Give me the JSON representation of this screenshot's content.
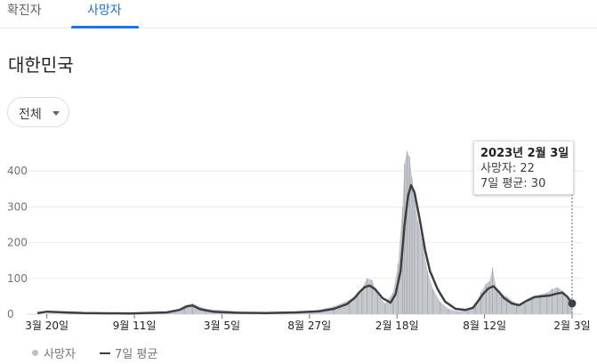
{
  "tabs": [
    {
      "label": "확진자",
      "active": false
    },
    {
      "label": "사망자",
      "active": true
    }
  ],
  "region": "대한민국",
  "filter": {
    "label": "전체",
    "icon": "caret-down-icon"
  },
  "tooltip": {
    "date": "2023년 2월 3일",
    "deaths_label": "사망자: 22",
    "avg_label": "7일 평균: 30"
  },
  "legend": {
    "deaths": "사망자",
    "avg": "7일 평균"
  },
  "colors": {
    "accent": "#1a73e8",
    "bars": "#bdc1c6",
    "line": "#3c4043"
  },
  "chart_data": {
    "type": "bar",
    "title": "",
    "xlabel": "",
    "ylabel": "",
    "ylim": [
      0,
      460
    ],
    "yticks": [
      0,
      100,
      200,
      300,
      400
    ],
    "grid": true,
    "legend_position": "bottom-left",
    "x_range": [
      "2020-03-01",
      "2023-02-03"
    ],
    "xtick_labels": [
      {
        "date": "2020-03-20",
        "label": "3월 20일"
      },
      {
        "date": "2020-09-11",
        "label": "9월 11일"
      },
      {
        "date": "2021-03-05",
        "label": "3월 5일"
      },
      {
        "date": "2021-08-27",
        "label": "8월 27일"
      },
      {
        "date": "2022-02-18",
        "label": "2월 18일"
      },
      {
        "date": "2022-08-12",
        "label": "8월 12일"
      },
      {
        "date": "2023-02-03",
        "label": "2월 3일"
      }
    ],
    "series": [
      {
        "name": "사망자",
        "kind": "bar",
        "x": [
          "2020-03-01",
          "2020-06-01",
          "2020-09-01",
          "2020-12-01",
          "2020-12-20",
          "2021-01-05",
          "2021-02-01",
          "2021-05-01",
          "2021-09-01",
          "2021-10-15",
          "2021-11-15",
          "2021-12-01",
          "2021-12-10",
          "2021-12-20",
          "2021-12-30",
          "2022-01-10",
          "2022-01-25",
          "2022-02-10",
          "2022-02-20",
          "2022-03-01",
          "2022-03-05",
          "2022-03-10",
          "2022-03-15",
          "2022-03-20",
          "2022-03-25",
          "2022-04-01",
          "2022-04-10",
          "2022-04-20",
          "2022-05-01",
          "2022-05-15",
          "2022-06-01",
          "2022-06-20",
          "2022-07-10",
          "2022-07-25",
          "2022-08-05",
          "2022-08-15",
          "2022-08-22",
          "2022-08-28",
          "2022-09-05",
          "2022-09-15",
          "2022-09-25",
          "2022-10-15",
          "2022-11-01",
          "2022-11-15",
          "2022-12-01",
          "2022-12-15",
          "2022-12-25",
          "2023-01-05",
          "2023-01-15",
          "2023-01-25",
          "2023-02-03"
        ],
        "values": [
          1,
          2,
          3,
          6,
          24,
          30,
          15,
          5,
          8,
          22,
          40,
          55,
          72,
          100,
          95,
          55,
          30,
          60,
          140,
          300,
          420,
          455,
          440,
          380,
          320,
          260,
          200,
          120,
          70,
          35,
          15,
          8,
          12,
          28,
          62,
          85,
          92,
          130,
          70,
          55,
          50,
          28,
          30,
          45,
          55,
          60,
          70,
          75,
          65,
          50,
          22
        ]
      },
      {
        "name": "7일 평균",
        "kind": "line",
        "x": [
          "2020-03-01",
          "2020-03-20",
          "2020-06-01",
          "2020-09-01",
          "2020-11-15",
          "2020-12-10",
          "2020-12-25",
          "2021-01-05",
          "2021-01-20",
          "2021-02-15",
          "2021-04-01",
          "2021-06-01",
          "2021-08-01",
          "2021-09-15",
          "2021-10-15",
          "2021-11-10",
          "2021-11-25",
          "2021-12-05",
          "2021-12-15",
          "2021-12-25",
          "2022-01-05",
          "2022-01-20",
          "2022-02-05",
          "2022-02-15",
          "2022-02-25",
          "2022-03-05",
          "2022-03-12",
          "2022-03-18",
          "2022-03-25",
          "2022-04-05",
          "2022-04-15",
          "2022-04-25",
          "2022-05-10",
          "2022-05-25",
          "2022-06-15",
          "2022-07-05",
          "2022-07-20",
          "2022-08-01",
          "2022-08-10",
          "2022-08-20",
          "2022-08-30",
          "2022-09-10",
          "2022-09-20",
          "2022-10-05",
          "2022-10-20",
          "2022-11-05",
          "2022-11-20",
          "2022-12-05",
          "2022-12-20",
          "2023-01-05",
          "2023-01-15",
          "2023-01-25",
          "2023-02-03"
        ],
        "values": [
          3,
          7,
          3,
          2,
          5,
          12,
          22,
          24,
          14,
          7,
          4,
          3,
          5,
          8,
          15,
          28,
          45,
          62,
          75,
          80,
          70,
          45,
          32,
          55,
          120,
          250,
          330,
          360,
          340,
          260,
          180,
          120,
          70,
          35,
          15,
          12,
          18,
          40,
          58,
          72,
          78,
          62,
          45,
          30,
          25,
          38,
          48,
          50,
          52,
          58,
          60,
          48,
          30
        ]
      }
    ]
  }
}
